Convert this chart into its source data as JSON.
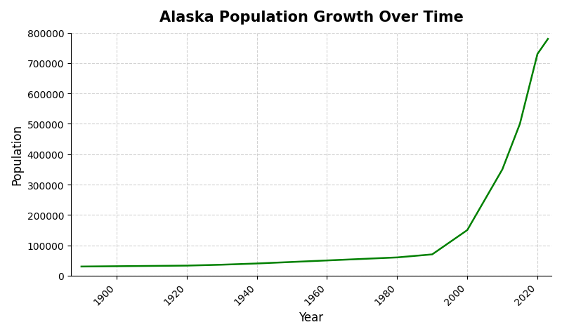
{
  "title": "Alaska Population Growth Over Time",
  "xlabel": "Year",
  "ylabel": "Population",
  "line_color": "#008000",
  "line_width": 1.8,
  "background_color": "#ffffff",
  "grid_color": "#c8c8c8",
  "grid_linestyle": "--",
  "years": [
    1890,
    1900,
    1910,
    1920,
    1930,
    1940,
    1950,
    1960,
    1970,
    1980,
    1990,
    2000,
    2005,
    2010,
    2015,
    2020,
    2023
  ],
  "population": [
    30000,
    31000,
    32000,
    33000,
    36000,
    40000,
    45000,
    50000,
    55000,
    60000,
    70000,
    150000,
    250000,
    350000,
    500000,
    730000,
    780000
  ],
  "ylim": [
    0,
    800000
  ],
  "xlim": [
    1887,
    2024
  ],
  "yticks": [
    0,
    100000,
    200000,
    300000,
    400000,
    500000,
    600000,
    700000,
    800000
  ],
  "xticks": [
    1900,
    1920,
    1940,
    1960,
    1980,
    2000,
    2020
  ],
  "title_fontsize": 15,
  "label_fontsize": 12,
  "tick_fontsize": 10
}
